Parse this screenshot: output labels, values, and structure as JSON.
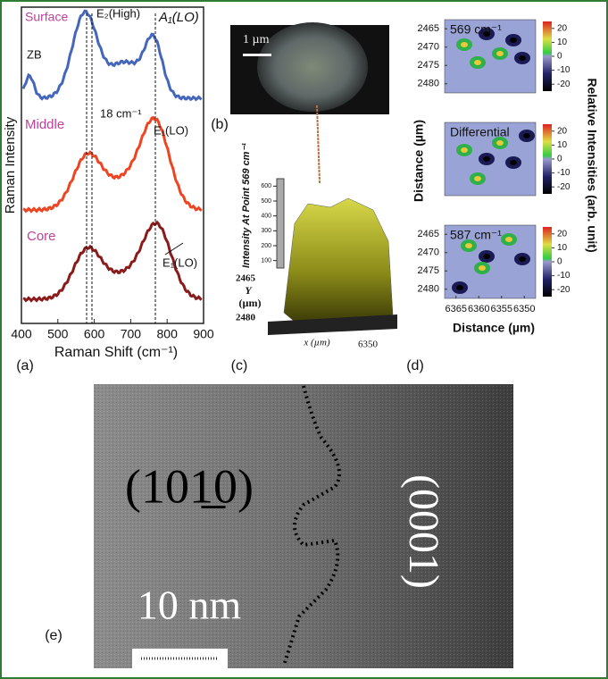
{
  "panel_a": {
    "label": "(a)",
    "y_label": "Raman Intensity",
    "x_label": "Raman Shift (cm⁻¹)",
    "xlim": [
      400,
      900
    ],
    "xticks": [
      400,
      500,
      600,
      700,
      800,
      900
    ],
    "curves": [
      "Surface",
      "Middle",
      "Core"
    ],
    "peaks": {
      "zb": "ZB",
      "e2": "E₂(High)",
      "a1": "A₁(LO)",
      "shift": "18 cm⁻¹",
      "e1_middle": "E₁(LO)",
      "e1_core": "E₁(LO)"
    }
  },
  "panel_b": {
    "label": "(b)",
    "scale": "1 µm"
  },
  "panel_c": {
    "label": "(c)",
    "z_label": "Intensity At Point 569 cm⁻¹",
    "zlim": [
      50,
      650
    ],
    "zticks": [
      600,
      500,
      400,
      300,
      200,
      100
    ],
    "y_ticks": [
      2465,
      2480
    ],
    "y_label": "Y",
    "y_unit": "(µm)",
    "x_label": "x (µm)",
    "x_tick": 6350
  },
  "panel_d": {
    "label": "(d)",
    "maps": [
      "569 cm⁻¹",
      "Differential",
      "587 cm⁻¹"
    ],
    "ylim": [
      2462.5,
      2482.5
    ],
    "yticks": [
      2465,
      2470,
      2475,
      2480
    ],
    "xlim": [
      6367.5,
      6347.5
    ],
    "xticks": [
      6365,
      6360,
      6355,
      6350
    ],
    "clim": [
      -25,
      25
    ],
    "cticks": [
      20,
      10,
      0,
      -10,
      -20
    ],
    "y_label": "Distance (µm)",
    "x_label": "Distance (µm)",
    "c_label": "Relative Intensities (arb. unit)"
  },
  "panel_e": {
    "label": "(e)",
    "left_plane": "(101̲0)",
    "right_plane": "(0001)",
    "scale": "10 nm"
  }
}
